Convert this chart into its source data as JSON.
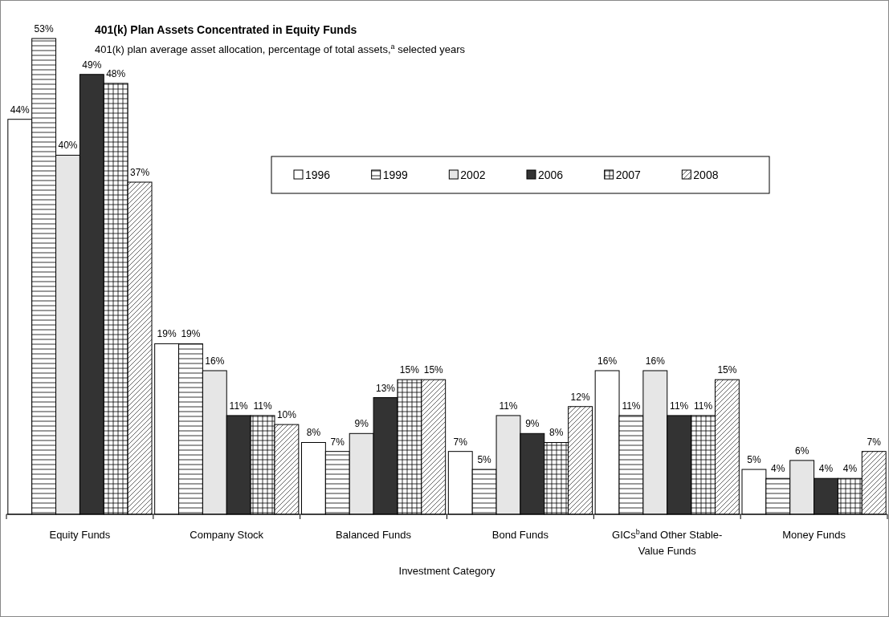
{
  "chart_data": {
    "type": "bar",
    "title": "401(k) Plan Assets Concentrated in Equity Funds",
    "subtitle": "401(k) plan average asset allocation, percentage of total assets,$^{a}$ selected years",
    "xlabel": "Investment Category",
    "categories": [
      "Equity Funds",
      "Company Stock",
      "Balanced Funds",
      "Bond Funds",
      "GICs$^{b}$and Other Stable-Value Funds",
      "Money Funds"
    ],
    "series": [
      {
        "name": "1996",
        "color": "#ffffff",
        "values": [
          44,
          19,
          8,
          7,
          16,
          5
        ],
        "value_labels": [
          "44%",
          "19%",
          "8%",
          "7%",
          "16%",
          "5%"
        ]
      },
      {
        "name": "1999",
        "color": "#000000",
        "values": [
          53,
          19,
          7,
          5,
          11,
          4
        ],
        "value_labels": [
          "53%",
          "19%",
          "7%",
          "5%",
          "11%",
          "4%"
        ]
      },
      {
        "name": "2002",
        "color": "#e6e6e6",
        "values": [
          40,
          16,
          9,
          11,
          16,
          6
        ],
        "value_labels": [
          "40%",
          "16%",
          "9%",
          "11%",
          "16%",
          "6%"
        ]
      },
      {
        "name": "2006",
        "color": "#333333",
        "values": [
          49,
          11,
          13,
          9,
          11,
          4
        ],
        "value_labels": [
          "49%",
          "11%",
          "13%",
          "9%",
          "11%",
          "4%"
        ]
      },
      {
        "name": "2007",
        "color": "#000000",
        "values": [
          48,
          11,
          15,
          8,
          11,
          4
        ],
        "value_labels": [
          "48%",
          "11%",
          "15%",
          "8%",
          "11%",
          "4%"
        ]
      },
      {
        "name": "2008",
        "color": "#000000",
        "values": [
          37,
          10,
          15,
          12,
          15,
          7
        ],
        "value_labels": [
          "37%",
          "10%",
          "15%",
          "12%",
          "15%",
          "7%"
        ]
      }
    ],
    "legend": "top",
    "grid": false
  }
}
